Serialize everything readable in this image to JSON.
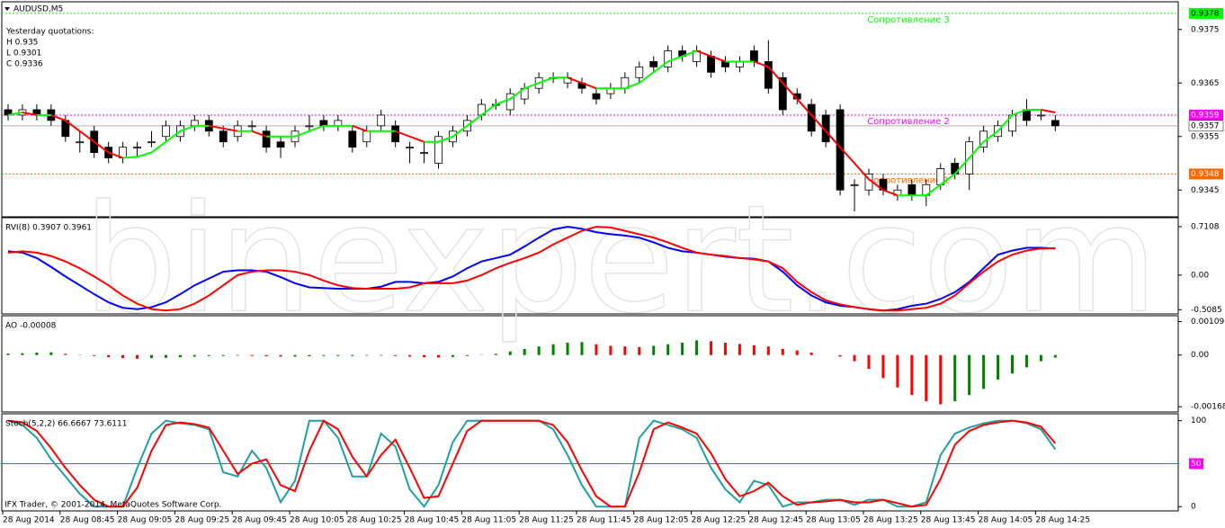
{
  "watermark": "binexpert.com",
  "copyright": "IFX Trader, © 2001-2014, MetaQuotes Software Corp.",
  "chart_data": [
    {
      "type": "candlestick",
      "title": "AUDUSD,M5",
      "annotations": [
        "Yesterday quotations:",
        "H 0.935",
        "L 0.9301",
        "C 0.9336"
      ],
      "categories": [
        "28 Aug 2014",
        null,
        null,
        null,
        "28 Aug 08:45",
        null,
        null,
        null,
        "28 Aug 09:05",
        null,
        null,
        null,
        "28 Aug 09:25",
        null,
        null,
        null,
        "28 Aug 09:45",
        null,
        null,
        null,
        "28 Aug 10:05",
        null,
        null,
        null,
        "28 Aug 10:25",
        null,
        null,
        null,
        "28 Aug 10:45",
        null,
        null,
        null,
        "28 Aug 11:05",
        null,
        null,
        null,
        "28 Aug 11:25",
        null,
        null,
        null,
        "28 Aug 11:45",
        null,
        null,
        null,
        "28 Aug 12:05",
        null,
        null,
        null,
        "28 Aug 12:25",
        null,
        null,
        null,
        "28 Aug 12:45",
        null,
        null,
        null,
        "28 Aug 13:05",
        null,
        null,
        null,
        "28 Aug 13:25",
        null,
        null,
        null,
        "28 Aug 13:45",
        null,
        null,
        null,
        "28 Aug 14:05",
        null,
        null,
        null,
        "28 Aug 14:25",
        null
      ],
      "open": [
        0.936,
        0.9359,
        0.936,
        0.936,
        0.9358,
        0.9354,
        0.9356,
        0.9353,
        0.9351,
        0.9353,
        0.9354,
        0.9355,
        0.9355,
        0.9357,
        0.9358,
        0.9356,
        0.9355,
        0.9357,
        0.9356,
        0.9354,
        0.9354,
        0.9357,
        0.9358,
        0.9357,
        0.9356,
        0.9354,
        0.9357,
        0.9357,
        0.9353,
        0.9352,
        0.935,
        0.9354,
        0.9356,
        0.9359,
        0.9361,
        0.936,
        0.9362,
        0.9364,
        0.9366,
        0.9365,
        0.9365,
        0.9363,
        0.9363,
        0.9364,
        0.9366,
        0.9369,
        0.9368,
        0.9371,
        0.9369,
        0.937,
        0.9369,
        0.9368,
        0.9371,
        0.9369,
        0.9366,
        0.9363,
        0.9361,
        0.9359,
        0.936,
        0.9346,
        0.9345,
        0.9347,
        0.9344,
        0.9346,
        0.9344,
        0.9346,
        0.935,
        0.9348,
        0.9353,
        0.9355,
        0.9356,
        0.936,
        0.9359,
        0.9358
      ],
      "high": [
        0.9361,
        0.9361,
        0.9361,
        0.9361,
        0.9359,
        0.9356,
        0.9357,
        0.9354,
        0.9354,
        0.9354,
        0.9356,
        0.9358,
        0.9358,
        0.9359,
        0.9359,
        0.9357,
        0.9358,
        0.9358,
        0.9357,
        0.9355,
        0.9357,
        0.9359,
        0.9359,
        0.9359,
        0.9357,
        0.9357,
        0.936,
        0.9358,
        0.9354,
        0.9354,
        0.9356,
        0.9357,
        0.9359,
        0.9362,
        0.9362,
        0.9364,
        0.9365,
        0.9367,
        0.9367,
        0.9367,
        0.9366,
        0.9364,
        0.9365,
        0.9367,
        0.9369,
        0.937,
        0.9372,
        0.9372,
        0.9372,
        0.9371,
        0.937,
        0.937,
        0.9372,
        0.9373,
        0.9367,
        0.9364,
        0.9362,
        0.936,
        0.9361,
        0.9347,
        0.9349,
        0.9348,
        0.9346,
        0.9347,
        0.9347,
        0.935,
        0.9351,
        0.9355,
        0.9357,
        0.9358,
        0.936,
        0.9362,
        0.936,
        0.9359
      ],
      "low": [
        0.9358,
        0.9358,
        0.9358,
        0.9357,
        0.9354,
        0.9352,
        0.9351,
        0.935,
        0.935,
        0.9351,
        0.9353,
        0.9354,
        0.9354,
        0.9356,
        0.9355,
        0.9353,
        0.9354,
        0.9356,
        0.9352,
        0.9351,
        0.9353,
        0.9356,
        0.9356,
        0.9356,
        0.9352,
        0.9353,
        0.9356,
        0.9353,
        0.935,
        0.935,
        0.9349,
        0.9353,
        0.9355,
        0.9358,
        0.936,
        0.9359,
        0.9361,
        0.9363,
        0.9365,
        0.9364,
        0.9363,
        0.9361,
        0.9362,
        0.9363,
        0.9365,
        0.9367,
        0.9367,
        0.9369,
        0.9368,
        0.9366,
        0.9367,
        0.9367,
        0.9368,
        0.9363,
        0.9359,
        0.9361,
        0.9355,
        0.9353,
        0.9344,
        0.9341,
        0.9344,
        0.9344,
        0.9343,
        0.9343,
        0.9342,
        0.9345,
        0.9347,
        0.9345,
        0.9352,
        0.9354,
        0.9355,
        0.9357,
        0.9358,
        0.9356
      ],
      "close": [
        0.9359,
        0.936,
        0.9359,
        0.9358,
        0.9355,
        0.9354,
        0.9352,
        0.9351,
        0.9353,
        0.9353,
        0.9354,
        0.9357,
        0.9357,
        0.9358,
        0.9356,
        0.9354,
        0.9357,
        0.9357,
        0.9353,
        0.9353,
        0.9356,
        0.9357,
        0.9357,
        0.9358,
        0.9353,
        0.9356,
        0.9359,
        0.9354,
        0.9353,
        0.9352,
        0.9355,
        0.9356,
        0.9358,
        0.9361,
        0.9361,
        0.9363,
        0.9364,
        0.9366,
        0.9366,
        0.9366,
        0.9364,
        0.9362,
        0.9364,
        0.9366,
        0.9368,
        0.9368,
        0.9371,
        0.937,
        0.9371,
        0.9367,
        0.9368,
        0.9369,
        0.9369,
        0.9364,
        0.936,
        0.9362,
        0.9356,
        0.9354,
        0.9345,
        0.9346,
        0.9348,
        0.9345,
        0.9345,
        0.9344,
        0.9346,
        0.9349,
        0.9348,
        0.9354,
        0.9356,
        0.9357,
        0.9359,
        0.9358,
        0.9359,
        0.9357
      ],
      "up_color": "#ffffff",
      "down_color": "#000000",
      "ma": {
        "values": [
          0.9359,
          0.93595,
          0.9359,
          0.9359,
          0.9358,
          0.9356,
          0.9354,
          0.9352,
          0.9351,
          0.93512,
          0.9352,
          0.9354,
          0.9356,
          0.9357,
          0.9357,
          0.93565,
          0.9356,
          0.9356,
          0.9355,
          0.9355,
          0.9355,
          0.9356,
          0.9357,
          0.9357,
          0.9357,
          0.9356,
          0.9356,
          0.9356,
          0.9355,
          0.9354,
          0.9354,
          0.9355,
          0.9357,
          0.9359,
          0.9361,
          0.9362,
          0.9364,
          0.9365,
          0.9366,
          0.9366,
          0.9365,
          0.9364,
          0.9364,
          0.9364,
          0.9365,
          0.9367,
          0.9369,
          0.937,
          0.9371,
          0.937,
          0.9369,
          0.9369,
          0.9369,
          0.9368,
          0.9365,
          0.9362,
          0.9359,
          0.9356,
          0.9353,
          0.935,
          0.9347,
          0.9345,
          0.9344,
          0.9344,
          0.9344,
          0.9346,
          0.9348,
          0.9351,
          0.9354,
          0.9356,
          0.9359,
          0.936,
          0.936,
          0.93595
        ],
        "up_color": "#00ff00",
        "down_color": "#ff0000"
      },
      "levels": [
        {
          "value": 0.9378,
          "label": "Сопротивление 3",
          "color": "#00ff00"
        },
        {
          "value": 0.9359,
          "label": "Сопротивление 2",
          "color": "#ff00ff"
        },
        {
          "value": 0.9348,
          "label": "Сопротивление 1",
          "color": "#ff6600"
        }
      ],
      "ylim": [
        0.934,
        0.938
      ],
      "yticks": [
        0.9375,
        0.9365,
        0.9355,
        0.9345
      ]
    },
    {
      "type": "line",
      "title": "RVI(8) 0.3907 0.3961",
      "series": [
        {
          "color": "#0000ff",
          "values": [
            0.35,
            0.33,
            0.25,
            0.12,
            -0.02,
            -0.15,
            -0.28,
            -0.4,
            -0.48,
            -0.5,
            -0.47,
            -0.4,
            -0.28,
            -0.15,
            -0.05,
            0.05,
            0.07,
            0.07,
            0.05,
            -0.03,
            -0.12,
            -0.18,
            -0.19,
            -0.2,
            -0.2,
            -0.2,
            -0.17,
            -0.1,
            -0.1,
            -0.12,
            -0.1,
            -0.02,
            0.1,
            0.2,
            0.25,
            0.3,
            0.42,
            0.55,
            0.67,
            0.71,
            0.68,
            0.63,
            0.6,
            0.58,
            0.55,
            0.48,
            0.4,
            0.35,
            0.33,
            0.3,
            0.27,
            0.25,
            0.24,
            0.2,
            0.05,
            -0.15,
            -0.3,
            -0.4,
            -0.45,
            -0.47,
            -0.5,
            -0.52,
            -0.5,
            -0.45,
            -0.42,
            -0.35,
            -0.25,
            -0.1,
            0.1,
            0.3,
            0.36,
            0.4,
            0.4,
            0.3907
          ]
        },
        {
          "color": "#ff0000",
          "values": [
            0.33,
            0.35,
            0.33,
            0.28,
            0.2,
            0.1,
            -0.02,
            -0.15,
            -0.3,
            -0.42,
            -0.5,
            -0.52,
            -0.5,
            -0.42,
            -0.3,
            -0.15,
            0,
            0.05,
            0.07,
            0.07,
            0.05,
            0,
            -0.08,
            -0.15,
            -0.19,
            -0.2,
            -0.2,
            -0.2,
            -0.18,
            -0.12,
            -0.12,
            -0.12,
            -0.08,
            0,
            0.1,
            0.18,
            0.25,
            0.33,
            0.45,
            0.55,
            0.65,
            0.71,
            0.7,
            0.65,
            0.6,
            0.55,
            0.48,
            0.4,
            0.33,
            0.3,
            0.28,
            0.25,
            0.23,
            0.2,
            0.1,
            -0.1,
            -0.25,
            -0.37,
            -0.43,
            -0.47,
            -0.5,
            -0.52,
            -0.52,
            -0.5,
            -0.48,
            -0.42,
            -0.3,
            -0.12,
            0.05,
            0.2,
            0.3,
            0.36,
            0.39,
            0.3961
          ]
        }
      ],
      "ylim": [
        -0.57,
        0.83
      ],
      "yticks": [
        0.7108,
        {
          "value": 0,
          "label": "0.00"
        },
        -0.5085
      ]
    },
    {
      "type": "histogram",
      "title": "AO -0.00008",
      "values": [
        5e-05,
        6e-05,
        8e-05,
        9e-05,
        4e-05,
        1e-05,
        -3e-05,
        -7e-05,
        -0.0001,
        -0.00012,
        -0.0001,
        -9e-05,
        -7e-05,
        -5e-05,
        -3e-05,
        -3e-05,
        -2e-05,
        -3e-05,
        -4e-05,
        -5e-05,
        -5e-05,
        -4e-05,
        -3e-05,
        -3e-05,
        -3e-05,
        -2e-05,
        -2e-05,
        -3e-05,
        -5e-05,
        -7e-05,
        -8e-05,
        -6e-05,
        -3e-05,
        1e-05,
        4e-05,
        0.00012,
        0.0002,
        0.00028,
        0.00035,
        0.0004,
        0.00042,
        0.00035,
        0.0003,
        0.00028,
        0.00026,
        0.0003,
        0.00035,
        0.0004,
        0.00048,
        0.00045,
        0.0004,
        0.00036,
        0.00032,
        0.00028,
        0.0002,
        0.00015,
        8e-05,
        0,
        -5e-05,
        -0.0002,
        -0.00045,
        -0.00075,
        -0.00105,
        -0.0013,
        -0.0015,
        -0.0016,
        -0.0015,
        -0.0013,
        -0.0011,
        -0.0008,
        -0.0006,
        -0.0004,
        -0.0002,
        -8e-05
      ],
      "up_color": "#008000",
      "down_color": "#ff0000",
      "ylim": [
        -0.00185,
        0.00125
      ],
      "yticks": [
        0.00109,
        {
          "value": 0,
          "label": "0.00"
        },
        -0.00168
      ]
    },
    {
      "type": "line",
      "title": "Stoch(5,2,2) 66.6667 73.6111",
      "series": [
        {
          "color": "#20a0a0",
          "values": [
            100,
            95,
            80,
            55,
            35,
            15,
            0,
            0,
            0,
            45,
            85,
            100,
            97,
            95,
            90,
            40,
            35,
            65,
            45,
            5,
            30,
            100,
            100,
            80,
            35,
            35,
            85,
            70,
            20,
            0,
            25,
            75,
            100,
            100,
            100,
            100,
            100,
            100,
            90,
            60,
            25,
            0,
            0,
            0,
            80,
            100,
            95,
            90,
            80,
            45,
            20,
            5,
            30,
            25,
            0,
            5,
            5,
            8,
            8,
            2,
            8,
            8,
            0,
            0,
            5,
            60,
            85,
            92,
            97,
            100,
            100,
            97,
            90,
            66.6667
          ]
        },
        {
          "color": "#ff0000",
          "values": [
            100,
            98,
            88,
            68,
            45,
            25,
            8,
            0,
            0,
            22,
            65,
            95,
            98,
            96,
            92,
            65,
            38,
            50,
            55,
            25,
            18,
            65,
            100,
            90,
            58,
            35,
            60,
            78,
            45,
            10,
            12,
            50,
            88,
            100,
            100,
            100,
            100,
            100,
            95,
            75,
            42,
            12,
            0,
            0,
            40,
            90,
            98,
            92,
            85,
            62,
            32,
            12,
            18,
            28,
            12,
            2,
            5,
            6,
            8,
            5,
            5,
            8,
            4,
            0,
            2,
            32,
            72,
            88,
            95,
            98,
            100,
            98,
            93,
            73.6111
          ]
        }
      ],
      "level": 50,
      "level_color": "#ff00ff",
      "ylim": [
        -5,
        107
      ],
      "yticks": [
        100,
        0
      ]
    }
  ]
}
